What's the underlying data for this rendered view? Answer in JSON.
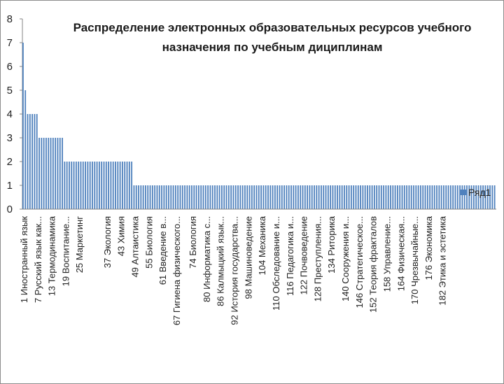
{
  "chart_data": {
    "type": "bar",
    "title": "Распределение электронных образовательных ресурсов учебного назначения по учебным дициплинам",
    "title_lines": [
      "Распределение электронных образовательных ресурсов учебного",
      "назначения по учебным дициплинам"
    ],
    "xlabel": "",
    "ylabel": "",
    "ylim": [
      0,
      8
    ],
    "y_ticks": [
      0,
      1,
      2,
      3,
      4,
      5,
      6,
      7,
      8
    ],
    "grid": false,
    "legend_position": "right",
    "color": "#4f81bd",
    "series": [
      {
        "name": "Ряд1",
        "values": [
          7,
          5,
          4,
          4,
          4,
          4,
          4,
          3,
          3,
          3,
          3,
          3,
          3,
          3,
          3,
          3,
          3,
          3,
          2,
          2,
          2,
          2,
          2,
          2,
          2,
          2,
          2,
          2,
          2,
          2,
          2,
          2,
          2,
          2,
          2,
          2,
          2,
          2,
          2,
          2,
          2,
          2,
          2,
          2,
          2,
          2,
          2,
          2,
          1,
          1,
          1,
          1,
          1,
          1,
          1,
          1,
          1,
          1,
          1,
          1,
          1,
          1,
          1,
          1,
          1,
          1,
          1,
          1,
          1,
          1,
          1,
          1,
          1,
          1,
          1,
          1,
          1,
          1,
          1,
          1,
          1,
          1,
          1,
          1,
          1,
          1,
          1,
          1,
          1,
          1,
          1,
          1,
          1,
          1,
          1,
          1,
          1,
          1,
          1,
          1,
          1,
          1,
          1,
          1,
          1,
          1,
          1,
          1,
          1,
          1,
          1,
          1,
          1,
          1,
          1,
          1,
          1,
          1,
          1,
          1,
          1,
          1,
          1,
          1,
          1,
          1,
          1,
          1,
          1,
          1,
          1,
          1,
          1,
          1,
          1,
          1,
          1,
          1,
          1,
          1,
          1,
          1,
          1,
          1,
          1,
          1,
          1,
          1,
          1,
          1,
          1,
          1,
          1,
          1,
          1,
          1,
          1,
          1,
          1,
          1,
          1,
          1,
          1,
          1,
          1,
          1,
          1,
          1,
          1,
          1,
          1,
          1,
          1,
          1,
          1,
          1,
          1,
          1,
          1,
          1,
          1,
          1,
          1,
          1,
          1,
          1,
          1,
          1,
          1,
          1,
          1,
          1,
          1,
          1,
          1,
          1,
          1,
          1,
          1,
          1,
          1,
          1,
          1,
          1,
          1
        ]
      }
    ],
    "category_count": 205,
    "visible_category_labels": [
      {
        "index": 1,
        "label": "1 Иностранный язык"
      },
      {
        "index": 7,
        "label": "7 Русский язык как..."
      },
      {
        "index": 13,
        "label": "13 Термодинамика"
      },
      {
        "index": 19,
        "label": "19 Воспитание..."
      },
      {
        "index": 25,
        "label": "25 Маркетинг"
      },
      {
        "index": 37,
        "label": "37 Экология"
      },
      {
        "index": 43,
        "label": "43 Химия"
      },
      {
        "index": 49,
        "label": "49 Алтаистика"
      },
      {
        "index": 55,
        "label": "55 Биология"
      },
      {
        "index": 61,
        "label": "61 Введение в..."
      },
      {
        "index": 67,
        "label": "67 Гигиена физического..."
      },
      {
        "index": 74,
        "label": "74 Биология"
      },
      {
        "index": 80,
        "label": "80 Информатика с..."
      },
      {
        "index": 86,
        "label": "86 Калмыцкий язык..."
      },
      {
        "index": 92,
        "label": "92 История государства..."
      },
      {
        "index": 98,
        "label": "98 Машиноведение"
      },
      {
        "index": 104,
        "label": "104 Механика"
      },
      {
        "index": 110,
        "label": "110 Обследование и..."
      },
      {
        "index": 116,
        "label": "116 Педагогика и..."
      },
      {
        "index": 122,
        "label": "122 Почвоведение"
      },
      {
        "index": 128,
        "label": "128 Преступления..."
      },
      {
        "index": 134,
        "label": "134 Риторика"
      },
      {
        "index": 140,
        "label": "140 Сооружения и..."
      },
      {
        "index": 146,
        "label": "146 Стратегическое..."
      },
      {
        "index": 152,
        "label": "152 Теория фракталов"
      },
      {
        "index": 158,
        "label": "158 Управление..."
      },
      {
        "index": 164,
        "label": "164 Физическая..."
      },
      {
        "index": 170,
        "label": "170 Чрезвычайные..."
      },
      {
        "index": 176,
        "label": "176 Экономика"
      },
      {
        "index": 182,
        "label": "182 Этика и эстетика"
      }
    ]
  }
}
